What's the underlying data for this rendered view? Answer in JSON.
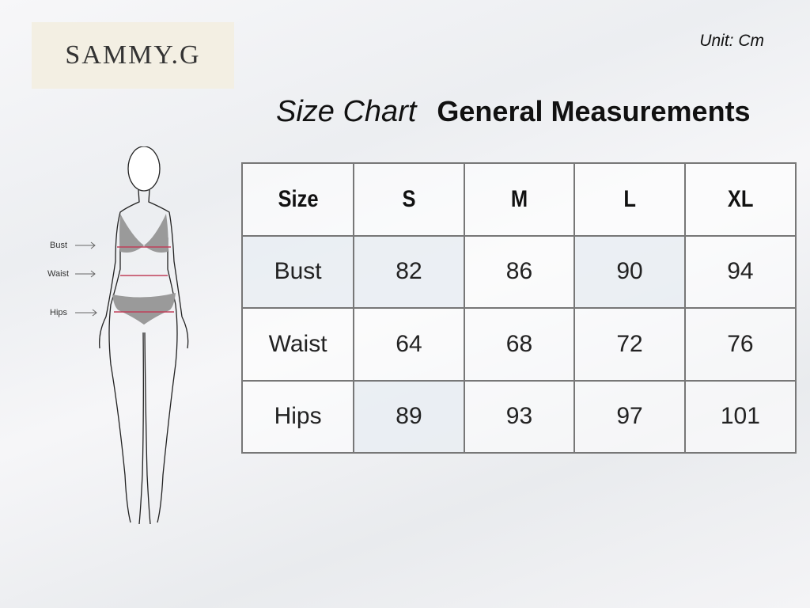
{
  "brand": "SAMMY.G",
  "unit": "Unit: Cm",
  "title_script": "Size Chart",
  "title_main": "General Measurements",
  "figure_labels": [
    "Bust",
    "Waist",
    "Hips"
  ],
  "table": {
    "header": [
      "Size",
      "S",
      "M",
      "L",
      "XL"
    ],
    "rows": [
      {
        "label": "Bust",
        "values": [
          "82",
          "86",
          "90",
          "94"
        ]
      },
      {
        "label": "Waist",
        "values": [
          "64",
          "68",
          "72",
          "76"
        ]
      },
      {
        "label": "Hips",
        "values": [
          "89",
          "93",
          "97",
          "101"
        ]
      }
    ]
  },
  "colors": {
    "logo_bg": "#f3efe3",
    "measure_line": "#c0405a",
    "garment": "#9a9a9a"
  }
}
